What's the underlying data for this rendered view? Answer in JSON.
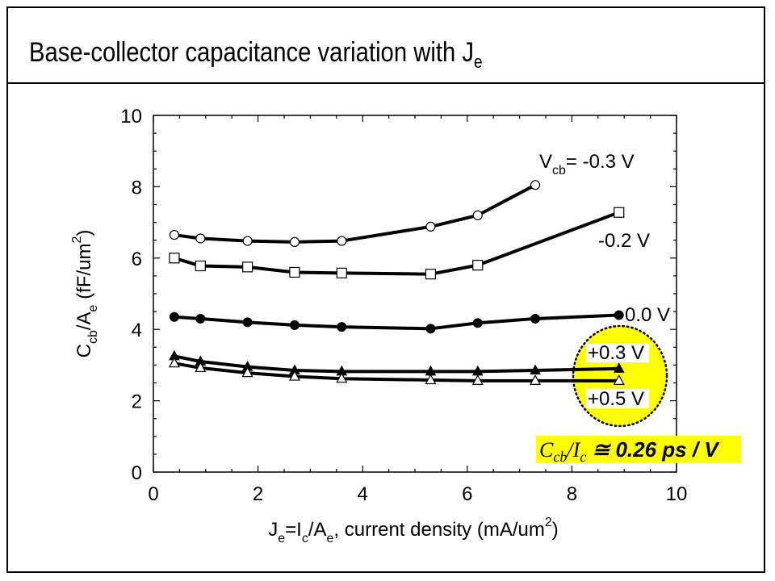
{
  "slide": {
    "title_main": "Base-collector capacitance variation with J",
    "title_sub": "e"
  },
  "chart_data": {
    "type": "line",
    "x_range": [
      0,
      10
    ],
    "y_range": [
      0,
      10
    ],
    "x_ticks": [
      "0",
      "2",
      "4",
      "6",
      "8",
      "10"
    ],
    "y_ticks": [
      "0",
      "2",
      "4",
      "6",
      "8",
      "10"
    ],
    "xlabel": {
      "j": "J",
      "j_sub": "e",
      "eq": "=I",
      "i_sub": "c",
      "slash": "/A",
      "a_sub": "e",
      "rest": ", current density (mA/um",
      "sup": "2",
      "close": ")"
    },
    "ylabel": {
      "c": "C",
      "c_sub": "cb",
      "slash": "/A",
      "a_sub": "e",
      "rest": " (fF/um",
      "sup": "2",
      "close": ")"
    },
    "grid": false,
    "series": [
      {
        "name": "V_cb = -0.3 V",
        "label_main": "V",
        "label_sub": "cb",
        "label_rest": "= -0.3 V",
        "marker": "circle-open",
        "x": [
          0.4,
          0.9,
          1.8,
          2.7,
          3.6,
          5.3,
          6.2,
          7.3
        ],
        "y": [
          6.65,
          6.55,
          6.48,
          6.45,
          6.48,
          6.88,
          7.2,
          8.05
        ]
      },
      {
        "name": "-0.2 V",
        "label_main": "-0.2 V",
        "marker": "square-open",
        "x": [
          0.4,
          0.9,
          1.8,
          2.7,
          3.6,
          5.3,
          6.2,
          8.9
        ],
        "y": [
          6.0,
          5.78,
          5.75,
          5.6,
          5.58,
          5.55,
          5.8,
          7.28
        ]
      },
      {
        "name": "0.0 V",
        "label_main": "0.0 V",
        "marker": "circle-filled",
        "x": [
          0.4,
          0.9,
          1.8,
          2.7,
          3.6,
          5.3,
          6.2,
          7.3,
          8.9
        ],
        "y": [
          4.35,
          4.3,
          4.2,
          4.12,
          4.07,
          4.02,
          4.18,
          4.3,
          4.4
        ]
      },
      {
        "name": "+0.3 V",
        "label_main": "+0.3 V",
        "marker": "triangle-filled",
        "x": [
          0.4,
          0.9,
          1.8,
          2.7,
          3.6,
          5.3,
          6.2,
          7.3,
          8.9
        ],
        "y": [
          3.25,
          3.1,
          2.95,
          2.85,
          2.82,
          2.82,
          2.82,
          2.85,
          2.9
        ]
      },
      {
        "name": "+0.5 V",
        "label_main": "+0.5 V",
        "marker": "triangle-open",
        "x": [
          0.4,
          0.9,
          1.8,
          2.7,
          3.6,
          5.3,
          6.2,
          7.3,
          8.9
        ],
        "y": [
          3.05,
          2.92,
          2.78,
          2.68,
          2.62,
          2.58,
          2.56,
          2.56,
          2.56
        ]
      }
    ],
    "annotation": {
      "c": "C",
      "c_sub": "cb",
      "i": "/I",
      "i_sub": "c",
      "rest": " ≅ 0.26 ps / V",
      "box_color": "#ffff00"
    },
    "highlight_color": "#ffff00"
  }
}
